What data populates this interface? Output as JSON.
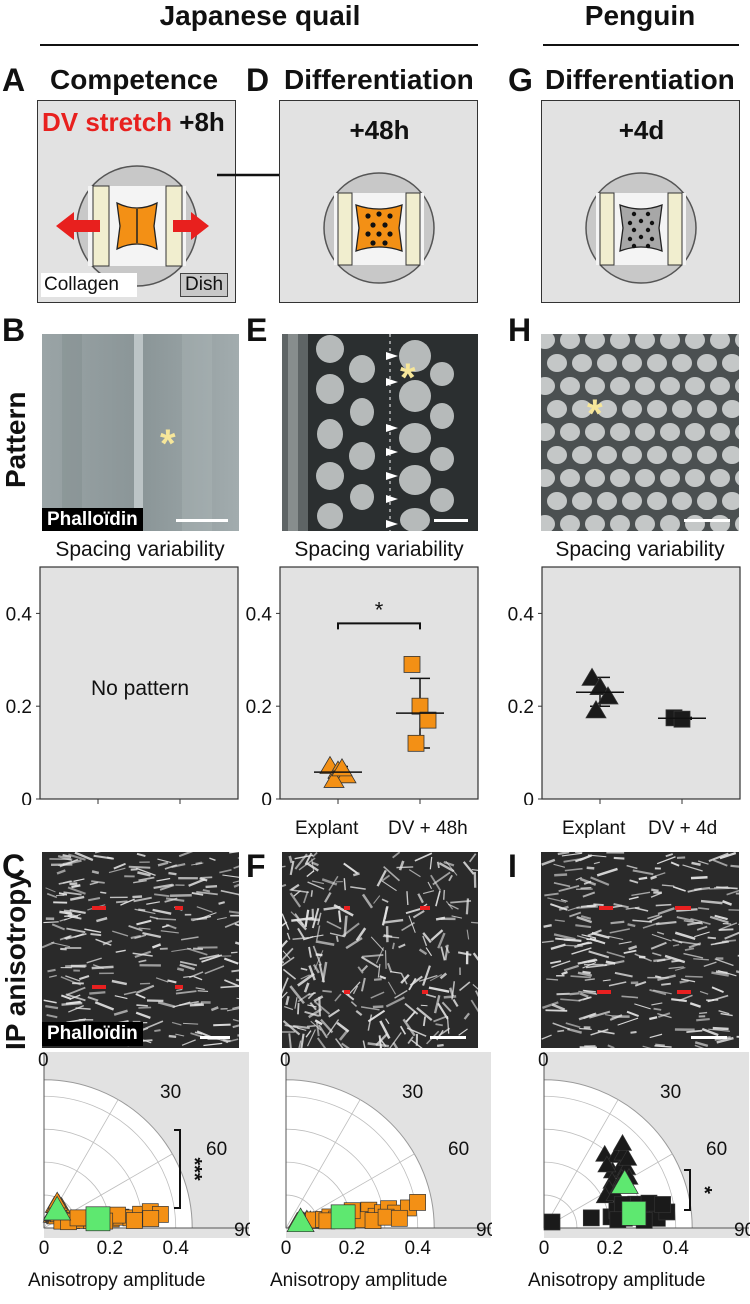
{
  "headers": {
    "quail": "Japanese quail",
    "penguin": "Penguin"
  },
  "panel_letters": {
    "A": "A",
    "B": "B",
    "C": "C",
    "D": "D",
    "E": "E",
    "F": "F",
    "G": "G",
    "H": "H",
    "I": "I"
  },
  "panel_titles": {
    "A": "Competence",
    "D": "Differentiation",
    "G": "Differentiation"
  },
  "schematic": {
    "A_stretch": "DV stretch",
    "A_time": "+8h",
    "D_time": "+48h",
    "G_time": "+4d",
    "collagen_label": "Collagen",
    "dish_label": "Dish"
  },
  "row_labels": {
    "pattern": "Pattern",
    "anisotropy": "IP anisotropy"
  },
  "micrograph_labels": {
    "B_stain": "Phalloïdin",
    "C_stain": "Phalloïdin",
    "asterisk": "*"
  },
  "spacing_title": "Spacing variability",
  "no_pattern": "No pattern",
  "polar_axis_label": "Anisotropy amplitude",
  "colors": {
    "quail_orange": "#f39015",
    "mean_green": "#5ee870",
    "penguin_black": "#1a1a1a",
    "stretch_red": "#e8201e",
    "panel_gray": "#e2e2e2"
  },
  "chart_data": [
    {
      "panel": "B-plot",
      "type": "scatter",
      "title": "Spacing variability",
      "ylim": [
        0,
        0.5
      ],
      "yticks": [
        "0",
        "0.2",
        "0.4"
      ],
      "annotation": "No pattern",
      "series": []
    },
    {
      "panel": "E-plot",
      "type": "scatter",
      "title": "Spacing variability",
      "categories": [
        "Explant",
        "DV + 48h"
      ],
      "ylim": [
        0,
        0.5
      ],
      "yticks": [
        "0",
        "0.2",
        "0.4"
      ],
      "significance": "*",
      "series": [
        {
          "marker": "triangle",
          "color": "#f39015",
          "category": "Explant",
          "values": [
            0.07,
            0.06,
            0.05,
            0.04,
            0.065
          ],
          "mean": 0.058,
          "error": [
            0.045,
            0.07
          ]
        },
        {
          "marker": "square",
          "color": "#f39015",
          "category": "DV + 48h",
          "values": [
            0.29,
            0.2,
            0.17,
            0.12
          ],
          "mean": 0.185,
          "error": [
            0.11,
            0.26
          ]
        }
      ]
    },
    {
      "panel": "H-plot",
      "type": "scatter",
      "title": "Spacing variability",
      "categories": [
        "Explant",
        "DV + 4d"
      ],
      "ylim": [
        0,
        0.5
      ],
      "yticks": [
        "0",
        "0.2",
        "0.4"
      ],
      "series": [
        {
          "marker": "triangle",
          "color": "#1a1a1a",
          "category": "Explant",
          "values": [
            0.26,
            0.24,
            0.22,
            0.19
          ],
          "mean": 0.23,
          "error": [
            0.2,
            0.262
          ]
        },
        {
          "marker": "square",
          "color": "#1a1a1a",
          "category": "DV + 4d",
          "values": [
            0.175,
            0.172
          ],
          "mean": 0.174,
          "error": [
            0.172,
            0.176
          ]
        }
      ]
    },
    {
      "panel": "C-plot",
      "type": "scatter",
      "polar": true,
      "xlabel": "Anisotropy amplitude",
      "rticks": [
        "0",
        "0.2",
        "0.4"
      ],
      "angle_ticks": [
        "0",
        "30",
        "60",
        "90"
      ],
      "significance": "***",
      "series": [
        {
          "marker": "triangle",
          "color": "#f39015",
          "points_r_angle": [
            [
              0.02,
              88
            ],
            [
              0.03,
              85
            ],
            [
              0.025,
              80
            ],
            [
              0.02,
              75
            ],
            [
              0.03,
              72
            ],
            [
              0.025,
              70
            ],
            [
              0.035,
              68
            ],
            [
              0.02,
              65
            ],
            [
              0.03,
              62
            ],
            [
              0.025,
              60
            ],
            [
              0.02,
              57
            ],
            [
              0.03,
              55
            ],
            [
              0.025,
              52
            ],
            [
              0.035,
              50
            ],
            [
              0.02,
              47
            ],
            [
              0.03,
              45
            ],
            [
              0.05,
              82
            ],
            [
              0.05,
              78
            ],
            [
              0.045,
              73
            ],
            [
              0.04,
              67
            ],
            [
              0.05,
              63
            ],
            [
              0.055,
              58
            ],
            [
              0.045,
              53
            ],
            [
              0.04,
              49
            ],
            [
              0.06,
              70
            ],
            [
              0.065,
              76
            ]
          ]
        },
        {
          "marker": "square",
          "color": "#f39015",
          "points_r_angle": [
            [
              0.03,
              5
            ],
            [
              0.06,
              4
            ],
            [
              0.09,
              3
            ],
            [
              0.12,
              2
            ],
            [
              0.15,
              2
            ],
            [
              0.18,
              3
            ],
            [
              0.21,
              4
            ],
            [
              0.24,
              3
            ],
            [
              0.27,
              5
            ],
            [
              0.3,
              6
            ],
            [
              0.33,
              4
            ],
            [
              0.1,
              7
            ],
            [
              0.2,
              6
            ],
            [
              0.05,
              1
            ],
            [
              0.16,
              1
            ],
            [
              0.25,
              1
            ],
            [
              0.08,
              9
            ],
            [
              0.3,
              2
            ]
          ]
        },
        {
          "marker": "triangle",
          "color": "#5ee870",
          "mean": true,
          "points_r_angle": [
            [
              0.04,
              67
            ]
          ]
        },
        {
          "marker": "square",
          "color": "#5ee870",
          "mean": true,
          "points_r_angle": [
            [
              0.14,
              4
            ]
          ]
        }
      ]
    },
    {
      "panel": "F-plot",
      "type": "scatter",
      "polar": true,
      "xlabel": "Anisotropy amplitude",
      "rticks": [
        "0",
        "0.2",
        "0.4"
      ],
      "angle_ticks": [
        "0",
        "30",
        "60",
        "90"
      ],
      "series": [
        {
          "marker": "triangle",
          "color": "#f39015",
          "points_r_angle": [
            [
              0.01,
              10
            ],
            [
              0.02,
              8
            ],
            [
              0.03,
              6
            ],
            [
              0.04,
              9
            ],
            [
              0.05,
              7
            ],
            [
              0.03,
              3
            ],
            [
              0.02,
              2
            ],
            [
              0.06,
              4
            ],
            [
              0.04,
              12
            ],
            [
              0.07,
              5
            ],
            [
              0.08,
              3
            ],
            [
              0.05,
              1
            ]
          ]
        },
        {
          "marker": "square",
          "color": "#f39015",
          "points_r_angle": [
            [
              0.06,
              6
            ],
            [
              0.09,
              5
            ],
            [
              0.11,
              8
            ],
            [
              0.13,
              4
            ],
            [
              0.15,
              6
            ],
            [
              0.17,
              3
            ],
            [
              0.19,
              7
            ],
            [
              0.21,
              5
            ],
            [
              0.23,
              9
            ],
            [
              0.25,
              4
            ],
            [
              0.27,
              6
            ],
            [
              0.29,
              8
            ],
            [
              0.31,
              5
            ],
            [
              0.35,
              7
            ],
            [
              0.38,
              9
            ],
            [
              0.1,
              2
            ],
            [
              0.2,
              2
            ],
            [
              0.24,
              1
            ],
            [
              0.14,
              10
            ],
            [
              0.18,
              11
            ],
            [
              0.28,
              3
            ],
            [
              0.32,
              2
            ]
          ]
        },
        {
          "marker": "triangle",
          "color": "#5ee870",
          "mean": true,
          "points_r_angle": [
            [
              0.02,
              4
            ]
          ]
        },
        {
          "marker": "square",
          "color": "#5ee870",
          "mean": true,
          "points_r_angle": [
            [
              0.15,
              6
            ]
          ]
        }
      ]
    },
    {
      "panel": "I-plot",
      "type": "scatter",
      "polar": true,
      "xlabel": "Anisotropy amplitude",
      "rticks": [
        "0",
        "0.2",
        "0.4"
      ],
      "angle_ticks": [
        "0",
        "30",
        "60",
        "90"
      ],
      "significance": "*",
      "series": [
        {
          "marker": "triangle",
          "color": "#1a1a1a",
          "points_r_angle": [
            [
              0.26,
              52
            ],
            [
              0.28,
              46
            ],
            [
              0.3,
              44
            ],
            [
              0.24,
              40
            ],
            [
              0.26,
              38
            ],
            [
              0.28,
              36
            ],
            [
              0.22,
              34
            ],
            [
              0.25,
              32
            ],
            [
              0.2,
              30
            ],
            [
              0.23,
              28
            ],
            [
              0.27,
              30
            ],
            [
              0.18,
              26
            ],
            [
              0.21,
              24
            ],
            [
              0.3,
              40
            ],
            [
              0.32,
              48
            ],
            [
              0.24,
              46
            ]
          ]
        },
        {
          "marker": "square",
          "color": "#1a1a1a",
          "points_r_angle": [
            [
              0.0,
              3
            ],
            [
              0.12,
              6
            ],
            [
              0.18,
              5
            ],
            [
              0.2,
              10
            ],
            [
              0.22,
              3
            ],
            [
              0.25,
              6
            ],
            [
              0.28,
              4
            ],
            [
              0.3,
              7
            ],
            [
              0.32,
              2
            ],
            [
              0.35,
              5
            ],
            [
              0.26,
              12
            ],
            [
              0.3,
              11
            ],
            [
              0.22,
              14
            ],
            [
              0.34,
              9
            ],
            [
              0.28,
              1
            ],
            [
              0.2,
              2
            ]
          ]
        },
        {
          "marker": "triangle",
          "color": "#5ee870",
          "mean": true,
          "points_r_angle": [
            [
              0.25,
              28
            ]
          ]
        },
        {
          "marker": "square",
          "color": "#5ee870",
          "mean": true,
          "points_r_angle": [
            [
              0.25,
              6
            ]
          ]
        }
      ]
    }
  ]
}
